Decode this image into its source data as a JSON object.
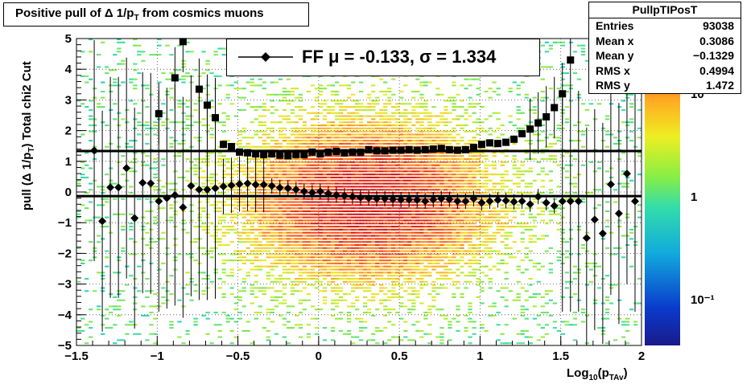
{
  "title": "Positive pull of Δ 1/p",
  "title_sub": "T",
  "title_tail": " from cosmics muons",
  "stats": {
    "name": "PullpTIPosT",
    "rows": [
      {
        "label": "Entries",
        "value": "93038"
      },
      {
        "label": "Mean x",
        "value": "0.3086"
      },
      {
        "label": "Mean y",
        "value": "−0.1329"
      },
      {
        "label": "RMS x",
        "value": "0.4994"
      },
      {
        "label": "RMS y",
        "value": "1.472"
      }
    ]
  },
  "legend": {
    "text": "FF μ = -0.133, σ =   1.334"
  },
  "chart_data": {
    "type": "heatmap",
    "xlabel": "Log10(pTAv)",
    "ylabel": "pull (Δ 1/pT)  Total chi2 Cut",
    "xlim": [
      -1.5,
      2
    ],
    "ylim": [
      -5,
      5
    ],
    "x_ticks": [
      "−1.5",
      "−1",
      "−0.5",
      "0",
      "0.5",
      "1",
      "1.5",
      "2"
    ],
    "y_ticks": [
      "−5",
      "−4",
      "−3",
      "−2",
      "−1",
      "0",
      "1",
      "2",
      "3",
      "4",
      "5"
    ],
    "z_ticks": [
      "10",
      "1",
      "10⁻¹"
    ],
    "z_scale": "log",
    "grid": true,
    "series": [
      {
        "name": "mean",
        "marker": "diamond",
        "x": [
          -1.39,
          -1.34,
          -1.29,
          -1.24,
          -1.19,
          -1.14,
          -1.09,
          -1.04,
          -0.99,
          -0.94,
          -0.89,
          -0.84,
          -0.79,
          -0.74,
          -0.69,
          -0.64,
          -0.59,
          -0.54,
          -0.49,
          -0.44,
          -0.39,
          -0.34,
          -0.29,
          -0.24,
          -0.19,
          -0.14,
          -0.09,
          -0.04,
          0.01,
          0.06,
          0.11,
          0.16,
          0.21,
          0.26,
          0.31,
          0.36,
          0.41,
          0.46,
          0.51,
          0.56,
          0.61,
          0.66,
          0.71,
          0.76,
          0.81,
          0.86,
          0.91,
          0.96,
          1.01,
          1.06,
          1.11,
          1.16,
          1.21,
          1.26,
          1.31,
          1.36,
          1.41,
          1.46,
          1.51,
          1.56,
          1.61,
          1.66,
          1.71,
          1.76,
          1.81,
          1.86,
          1.91,
          1.96
        ],
        "y": [
          1.35,
          -0.95,
          0.15,
          0.15,
          0.78,
          -0.85,
          0.3,
          0.28,
          -0.3,
          -0.2,
          -0.1,
          -0.5,
          0.2,
          0.08,
          0.08,
          0.12,
          0.18,
          0.22,
          0.26,
          0.28,
          0.24,
          0.24,
          0.2,
          0.14,
          0.12,
          0.08,
          0.02,
          -0.02,
          0.02,
          -0.05,
          -0.1,
          -0.12,
          -0.15,
          -0.18,
          -0.2,
          -0.22,
          -0.22,
          -0.24,
          -0.25,
          -0.25,
          -0.26,
          -0.3,
          -0.25,
          -0.22,
          -0.24,
          -0.3,
          -0.3,
          -0.22,
          -0.35,
          -0.3,
          -0.26,
          -0.28,
          -0.32,
          -0.3,
          -0.4,
          -0.15,
          -0.35,
          -0.45,
          -0.3,
          -0.3,
          -0.3,
          -1.5,
          -0.9,
          -1.35,
          0.25,
          -0.7,
          0.6,
          -0.3
        ]
      },
      {
        "name": "sigma",
        "marker": "square",
        "x": [
          -0.99,
          -0.89,
          -0.84,
          -0.74,
          -0.69,
          -0.64,
          -0.59,
          -0.54,
          -0.49,
          -0.44,
          -0.39,
          -0.34,
          -0.29,
          -0.24,
          -0.19,
          -0.14,
          -0.09,
          -0.04,
          0.01,
          0.06,
          0.11,
          0.16,
          0.21,
          0.26,
          0.31,
          0.36,
          0.41,
          0.46,
          0.51,
          0.56,
          0.61,
          0.66,
          0.71,
          0.76,
          0.81,
          0.86,
          0.91,
          0.96,
          1.01,
          1.06,
          1.11,
          1.16,
          1.21,
          1.26,
          1.31,
          1.36,
          1.41,
          1.46,
          1.51,
          1.56
        ],
        "y": [
          2.55,
          3.72,
          4.9,
          3.35,
          2.83,
          2.42,
          1.55,
          1.48,
          1.3,
          1.28,
          1.24,
          1.22,
          1.24,
          1.2,
          1.18,
          1.22,
          1.22,
          1.3,
          1.24,
          1.3,
          1.32,
          1.28,
          1.3,
          1.3,
          1.38,
          1.34,
          1.34,
          1.36,
          1.36,
          1.38,
          1.36,
          1.38,
          1.4,
          1.42,
          1.38,
          1.36,
          1.38,
          1.45,
          1.55,
          1.6,
          1.58,
          1.62,
          1.72,
          1.9,
          2.05,
          2.25,
          2.45,
          2.75,
          3.2,
          4.3
        ]
      },
      {
        "name": "fit lines",
        "y_lines": [
          -0.133,
          1.334
        ]
      }
    ]
  }
}
